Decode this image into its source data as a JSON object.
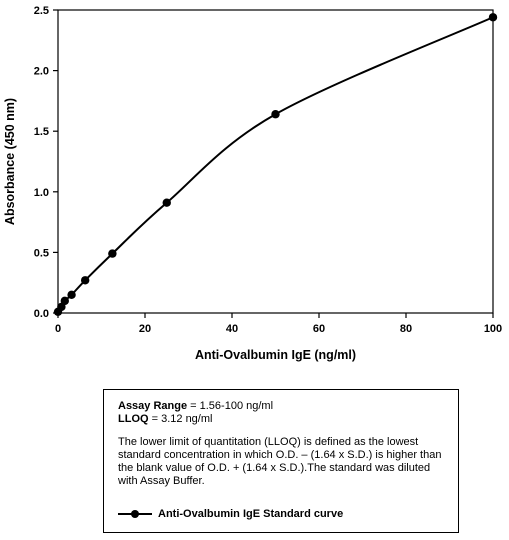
{
  "chart_data": {
    "type": "line",
    "title": "",
    "xlabel": "Anti-Ovalbumin IgE (ng/ml)",
    "ylabel": "Absorbance (450 nm)",
    "xlim": [
      0,
      100
    ],
    "ylim": [
      0,
      2.5
    ],
    "x_ticks": [
      "0",
      "20",
      "40",
      "60",
      "80",
      "100"
    ],
    "y_ticks": [
      "0.0",
      "0.5",
      "1.0",
      "1.5",
      "2.0",
      "2.5"
    ],
    "grid": false,
    "legend": "below",
    "series": [
      {
        "name": "Anti-Ovalbumin IgE Standard curve",
        "color": "#000000",
        "x": [
          0,
          0.78,
          1.56,
          3.12,
          6.25,
          12.5,
          25,
          50,
          100
        ],
        "y": [
          0.01,
          0.05,
          0.1,
          0.15,
          0.27,
          0.49,
          0.91,
          1.64,
          2.44
        ]
      }
    ]
  },
  "info_box": {
    "assay_range_label": "Assay Range",
    "assay_range_value": " = 1.56-100 ng/ml",
    "lloq_label": "LLOQ",
    "lloq_value": " = 3.12 ng/ml",
    "note": "The lower limit of quantitation (LLOQ) is defined as the lowest standard concentration in which O.D. – (1.64 x S.D.) is higher than the blank value of O.D. + (1.64 x S.D.).The standard was diluted with Assay Buffer.",
    "legend_label": "Anti-Ovalbumin IgE Standard curve"
  }
}
